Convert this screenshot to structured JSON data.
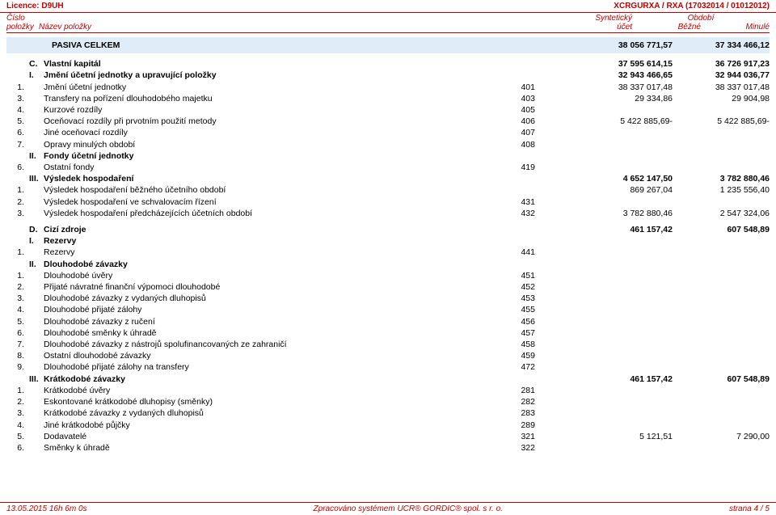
{
  "header": {
    "licence": "Licence: D9UH",
    "code": "XCRGURXA / RXA (17032014 / 01012012)"
  },
  "columns": {
    "r1c1": "Číslo",
    "r1c3": "Syntetický",
    "r1c4": "Období",
    "r2c1": "položky",
    "r2c2": "Název položky",
    "r2c3": "účet",
    "r2c4a": "Běžné",
    "r2c4b": "Minulé"
  },
  "rows": [
    {
      "type": "section",
      "name": "PASIVA CELKEM",
      "v1": "38 056 771,57",
      "v2": "37 334 466,12"
    },
    {
      "type": "head",
      "lvl": "C.",
      "name": "Vlastní kapitál",
      "v1": "37 595 614,15",
      "v2": "36 726 917,23"
    },
    {
      "type": "sub",
      "lvl": "I.",
      "name": "Jmění účetní jednotky a upravující položky",
      "v1": "32 943 466,65",
      "v2": "32 944 036,77"
    },
    {
      "type": "item",
      "num": "1.",
      "name": "Jmění účetní jednotky",
      "acct": "401",
      "v1": "38 337 017,48",
      "v2": "38 337 017,48"
    },
    {
      "type": "item",
      "num": "3.",
      "name": "Transfery na pořízení dlouhodobého majetku",
      "acct": "403",
      "v1": "29 334,86",
      "v2": "29 904,98"
    },
    {
      "type": "item",
      "num": "4.",
      "name": "Kurzové rozdíly",
      "acct": "405",
      "v1": "",
      "v2": ""
    },
    {
      "type": "item",
      "num": "5.",
      "name": "Oceňovací rozdíly při prvotním použití metody",
      "acct": "406",
      "v1": "5 422 885,69-",
      "v2": "5 422 885,69-"
    },
    {
      "type": "item",
      "num": "6.",
      "name": "Jiné oceňovací rozdíly",
      "acct": "407",
      "v1": "",
      "v2": ""
    },
    {
      "type": "item",
      "num": "7.",
      "name": "Opravy minulých období",
      "acct": "408",
      "v1": "",
      "v2": ""
    },
    {
      "type": "sub",
      "lvl": "II.",
      "name": "Fondy účetní jednotky",
      "v1": "",
      "v2": ""
    },
    {
      "type": "item",
      "num": "6.",
      "name": "Ostatní fondy",
      "acct": "419",
      "v1": "",
      "v2": ""
    },
    {
      "type": "sub",
      "lvl": "III.",
      "name": "Výsledek hospodaření",
      "v1": "4 652 147,50",
      "v2": "3 782 880,46"
    },
    {
      "type": "item",
      "num": "1.",
      "name": "Výsledek hospodaření běžného účetního období",
      "acct": "",
      "v1": "869 267,04",
      "v2": "1 235 556,40"
    },
    {
      "type": "item",
      "num": "2.",
      "name": "Výsledek hospodaření ve schvalovacím řízení",
      "acct": "431",
      "v1": "",
      "v2": ""
    },
    {
      "type": "item",
      "num": "3.",
      "name": "Výsledek hospodaření předcházejících účetních období",
      "acct": "432",
      "v1": "3 782 880,46",
      "v2": "2 547 324,06"
    },
    {
      "type": "spacer"
    },
    {
      "type": "head",
      "lvl": "D.",
      "name": "Cizí zdroje",
      "v1": "461 157,42",
      "v2": "607 548,89"
    },
    {
      "type": "sub",
      "lvl": "I.",
      "name": "Rezervy",
      "v1": "",
      "v2": ""
    },
    {
      "type": "item",
      "num": "1.",
      "name": "Rezervy",
      "acct": "441",
      "v1": "",
      "v2": ""
    },
    {
      "type": "sub",
      "lvl": "II.",
      "name": "Dlouhodobé závazky",
      "v1": "",
      "v2": ""
    },
    {
      "type": "item",
      "num": "1.",
      "name": "Dlouhodobé úvěry",
      "acct": "451",
      "v1": "",
      "v2": ""
    },
    {
      "type": "item",
      "num": "2.",
      "name": "Přijaté návratné finanční výpomoci dlouhodobé",
      "acct": "452",
      "v1": "",
      "v2": ""
    },
    {
      "type": "item",
      "num": "3.",
      "name": "Dlouhodobé závazky z vydaných dluhopisů",
      "acct": "453",
      "v1": "",
      "v2": ""
    },
    {
      "type": "item",
      "num": "4.",
      "name": "Dlouhodobé přijaté zálohy",
      "acct": "455",
      "v1": "",
      "v2": ""
    },
    {
      "type": "item",
      "num": "5.",
      "name": "Dlouhodobé závazky z ručení",
      "acct": "456",
      "v1": "",
      "v2": ""
    },
    {
      "type": "item",
      "num": "6.",
      "name": "Dlouhodobé směnky k úhradě",
      "acct": "457",
      "v1": "",
      "v2": ""
    },
    {
      "type": "item",
      "num": "7.",
      "name": "Dlouhodobé závazky z nástrojů spolufinancovaných ze zahraničí",
      "acct": "458",
      "v1": "",
      "v2": ""
    },
    {
      "type": "item",
      "num": "8.",
      "name": "Ostatní dlouhodobé závazky",
      "acct": "459",
      "v1": "",
      "v2": ""
    },
    {
      "type": "item",
      "num": "9.",
      "name": "Dlouhodobé přijaté zálohy na transfery",
      "acct": "472",
      "v1": "",
      "v2": ""
    },
    {
      "type": "sub",
      "lvl": "III.",
      "name": "Krátkodobé závazky",
      "v1": "461 157,42",
      "v2": "607 548,89"
    },
    {
      "type": "item",
      "num": "1.",
      "name": "Krátkodobé úvěry",
      "acct": "281",
      "v1": "",
      "v2": ""
    },
    {
      "type": "item",
      "num": "2.",
      "name": "Eskontované krátkodobé dluhopisy (směnky)",
      "acct": "282",
      "v1": "",
      "v2": ""
    },
    {
      "type": "item",
      "num": "3.",
      "name": "Krátkodobé závazky z vydaných dluhopisů",
      "acct": "283",
      "v1": "",
      "v2": ""
    },
    {
      "type": "item",
      "num": "4.",
      "name": "Jiné krátkodobé půjčky",
      "acct": "289",
      "v1": "",
      "v2": ""
    },
    {
      "type": "item",
      "num": "5.",
      "name": "Dodavatelé",
      "acct": "321",
      "v1": "5 121,51",
      "v2": "7 290,00"
    },
    {
      "type": "item",
      "num": "6.",
      "name": "Směnky k úhradě",
      "acct": "322",
      "v1": "",
      "v2": ""
    }
  ],
  "footer": {
    "left": "13.05.2015 16h 6m 0s",
    "center": "Zpracováno systémem UCR® GORDIC® spol. s r. o.",
    "right": "strana 4 / 5"
  }
}
